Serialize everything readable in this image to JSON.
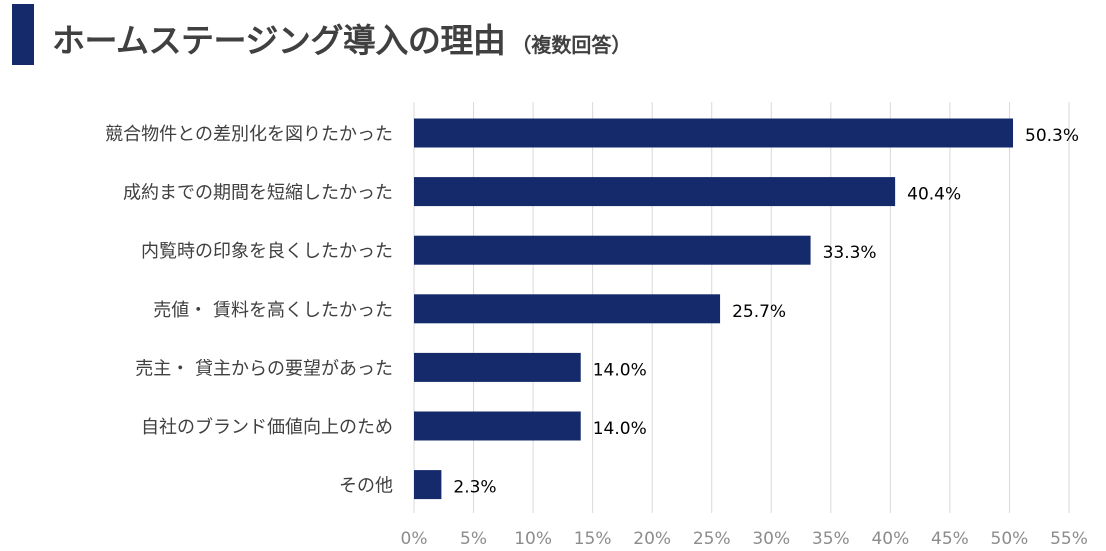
{
  "header": {
    "title": "ホームステージング導入の理由",
    "subtitle": "（複数回答）"
  },
  "colors": {
    "accent": "#142a6b",
    "bar": "#142a6b",
    "grid": "#d9d9d9",
    "tick_label": "#8c8c8c",
    "category_label": "#404040",
    "data_label": "#000000"
  },
  "chart_data": {
    "type": "bar",
    "orientation": "horizontal",
    "title": "ホームステージング導入の理由",
    "subtitle": "（複数回答）",
    "categories": [
      "競合物件との差別化を図りたかった",
      "成約までの期間を短縮したかった",
      "内覧時の印象を良くしたかった",
      "売値・ 賃料を高くしたかった",
      "売主・ 貸主からの要望があった",
      "自社のブランド価値向上のため",
      "その他"
    ],
    "values": [
      50.3,
      40.4,
      33.3,
      25.7,
      14.0,
      14.0,
      2.3
    ],
    "data_labels": [
      "50.3%",
      "40.4%",
      "33.3%",
      "25.7%",
      "14.0%",
      "14.0%",
      "2.3%"
    ],
    "xlim": [
      0,
      55
    ],
    "x_ticks": [
      0,
      5,
      10,
      15,
      20,
      25,
      30,
      35,
      40,
      45,
      50,
      55
    ],
    "x_tick_labels": [
      "0%",
      "5%",
      "10%",
      "15%",
      "20%",
      "25%",
      "30%",
      "35%",
      "40%",
      "45%",
      "50%",
      "55%"
    ],
    "xlabel": "",
    "ylabel": "",
    "grid": "vertical",
    "legend": "none"
  }
}
